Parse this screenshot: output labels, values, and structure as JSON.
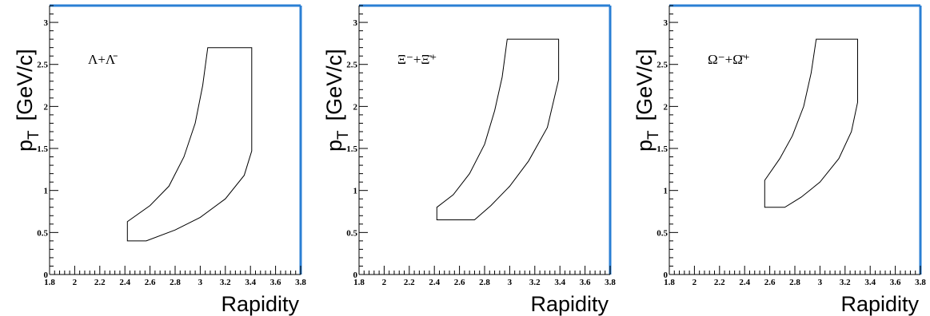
{
  "figure": {
    "frame_color": "#2a7fd4"
  },
  "chart_data": [
    {
      "type": "area",
      "annotation": "Λ+Λ̄",
      "ylabel_main": "p",
      "ylabel_sub": "T",
      "ylabel_unit": "[GeV/c]",
      "xlabel": "Rapidity",
      "xlim": [
        1.8,
        3.8
      ],
      "ylim": [
        0,
        3.2
      ],
      "xticks": [
        "1.8",
        "2",
        "2.2",
        "2.4",
        "2.6",
        "2.8",
        "3",
        "3.2",
        "3.4",
        "3.6",
        "3.8"
      ],
      "yticks": [
        "0",
        "0.5",
        "1",
        "1.5",
        "2",
        "2.5",
        "3"
      ],
      "outline": {
        "x": [
          2.42,
          2.57,
          2.8,
          3.0,
          3.2,
          3.35,
          3.41,
          3.41,
          3.06,
          3.02,
          2.96,
          2.87,
          2.75,
          2.6,
          2.42,
          2.42
        ],
        "y": [
          0.4,
          0.4,
          0.53,
          0.68,
          0.9,
          1.18,
          1.47,
          2.7,
          2.7,
          2.25,
          1.8,
          1.4,
          1.05,
          0.82,
          0.63,
          0.4
        ]
      }
    },
    {
      "type": "area",
      "annotation": "Ξ⁻+Ξ̄⁺",
      "ylabel_main": "p",
      "ylabel_sub": "T",
      "ylabel_unit": "[GeV/c]",
      "xlabel": "Rapidity",
      "xlim": [
        1.8,
        3.8
      ],
      "ylim": [
        0,
        3.2
      ],
      "xticks": [
        "1.8",
        "2",
        "2.2",
        "2.4",
        "2.6",
        "2.8",
        "3",
        "3.2",
        "3.4",
        "3.6",
        "3.8"
      ],
      "yticks": [
        "0",
        "0.5",
        "1",
        "1.5",
        "2",
        "2.5",
        "3"
      ],
      "outline": {
        "x": [
          2.42,
          2.72,
          2.85,
          3.0,
          3.15,
          3.3,
          3.39,
          3.39,
          2.98,
          2.94,
          2.88,
          2.8,
          2.68,
          2.55,
          2.42,
          2.42
        ],
        "y": [
          0.65,
          0.65,
          0.82,
          1.05,
          1.35,
          1.75,
          2.32,
          2.8,
          2.8,
          2.35,
          1.95,
          1.55,
          1.2,
          0.95,
          0.8,
          0.65
        ]
      }
    },
    {
      "type": "area",
      "annotation": "Ω⁻+Ω̄⁺",
      "ylabel_main": "p",
      "ylabel_sub": "T",
      "ylabel_unit": "[GeV/c]",
      "xlabel": "Rapidity",
      "xlim": [
        1.8,
        3.8
      ],
      "ylim": [
        0,
        3.2
      ],
      "xticks": [
        "1.8",
        "2",
        "2.2",
        "2.4",
        "2.6",
        "2.8",
        "3",
        "3.2",
        "3.4",
        "3.6",
        "3.8"
      ],
      "yticks": [
        "0",
        "0.5",
        "1",
        "1.5",
        "2",
        "2.5",
        "3"
      ],
      "outline": {
        "x": [
          2.56,
          2.72,
          2.85,
          3.0,
          3.15,
          3.25,
          3.3,
          3.3,
          2.97,
          2.93,
          2.87,
          2.78,
          2.68,
          2.56,
          2.56
        ],
        "y": [
          0.8,
          0.8,
          0.92,
          1.1,
          1.38,
          1.7,
          2.05,
          2.8,
          2.8,
          2.4,
          2.0,
          1.65,
          1.38,
          1.12,
          0.8
        ]
      }
    }
  ]
}
